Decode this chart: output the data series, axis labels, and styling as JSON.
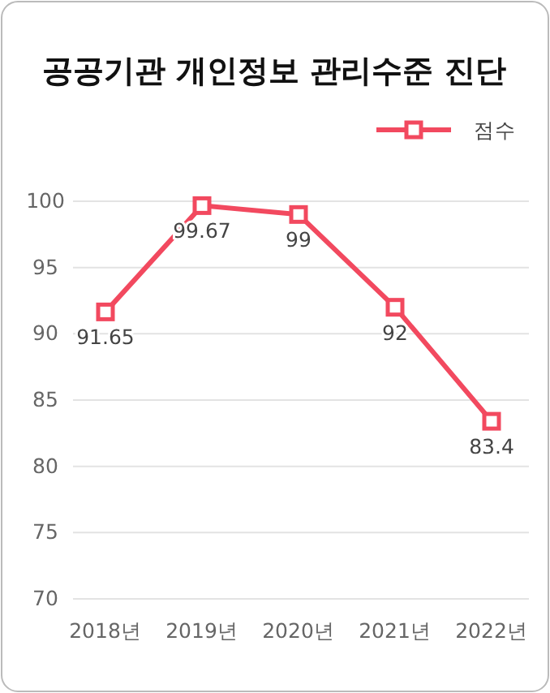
{
  "chart_data": {
    "type": "line",
    "title": "공공기관 개인정보 관리수준 진단",
    "categories": [
      "2018년",
      "2019년",
      "2020년",
      "2021년",
      "2022년"
    ],
    "series": [
      {
        "name": "점수",
        "color": "#f2495f",
        "values": [
          91.65,
          99.67,
          99,
          92,
          83.4
        ]
      }
    ],
    "ylim": [
      70,
      100
    ],
    "yticks": [
      70,
      75,
      80,
      85,
      90,
      95,
      100
    ],
    "grid": "y",
    "legend": "top right",
    "marker": "square",
    "line_style": "solid",
    "data_labels": true
  }
}
